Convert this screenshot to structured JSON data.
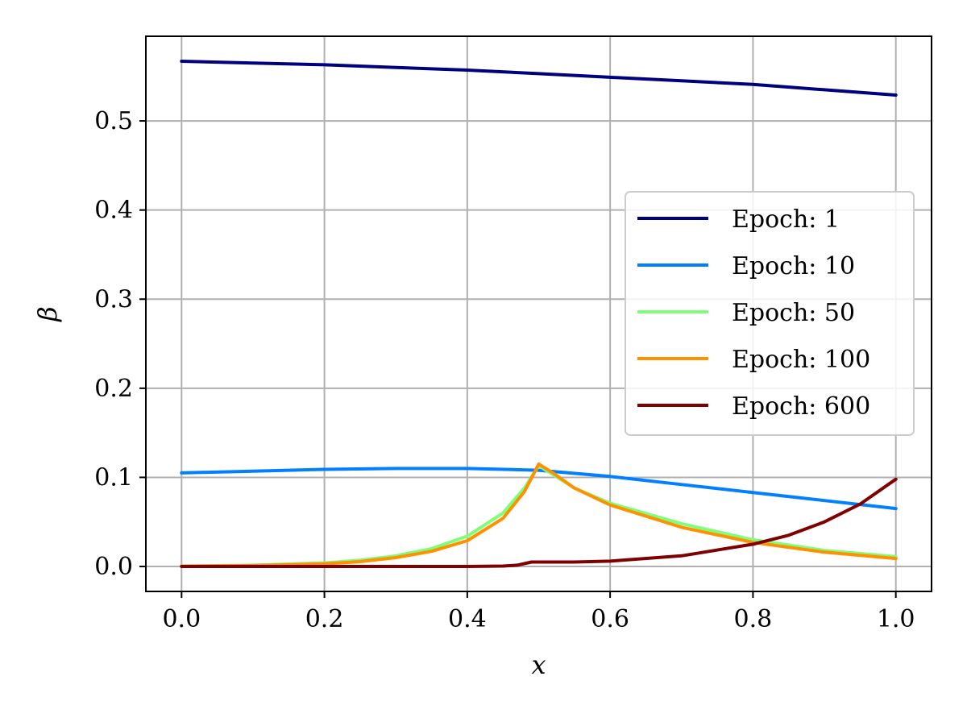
{
  "chart_data": {
    "type": "line",
    "title": "",
    "xlabel": "x",
    "ylabel": "β",
    "xlim": [
      -0.05,
      1.05
    ],
    "ylim": [
      -0.028,
      0.595
    ],
    "xticks": [
      0.0,
      0.2,
      0.4,
      0.6,
      0.8,
      1.0
    ],
    "xtick_labels": [
      "0.0",
      "0.2",
      "0.4",
      "0.6",
      "0.8",
      "1.0"
    ],
    "yticks": [
      0.0,
      0.1,
      0.2,
      0.3,
      0.4,
      0.5
    ],
    "ytick_labels": [
      "0.0",
      "0.1",
      "0.2",
      "0.3",
      "0.4",
      "0.5"
    ],
    "grid": true,
    "legend_position": "center-right",
    "series": [
      {
        "name": "Epoch: 1",
        "color": "#00007f",
        "x": [
          0.0,
          0.1,
          0.2,
          0.3,
          0.4,
          0.5,
          0.6,
          0.7,
          0.8,
          0.9,
          1.0
        ],
        "y": [
          0.567,
          0.565,
          0.563,
          0.56,
          0.557,
          0.553,
          0.549,
          0.545,
          0.541,
          0.535,
          0.529
        ]
      },
      {
        "name": "Epoch: 10",
        "color": "#0080ff",
        "x": [
          0.0,
          0.1,
          0.2,
          0.3,
          0.4,
          0.5,
          0.6,
          0.7,
          0.8,
          0.9,
          1.0
        ],
        "y": [
          0.105,
          0.107,
          0.109,
          0.11,
          0.11,
          0.108,
          0.101,
          0.092,
          0.083,
          0.074,
          0.065
        ]
      },
      {
        "name": "Epoch: 50",
        "color": "#7dff7a",
        "x": [
          0.0,
          0.1,
          0.2,
          0.25,
          0.3,
          0.35,
          0.4,
          0.45,
          0.48,
          0.5,
          0.52,
          0.55,
          0.6,
          0.7,
          0.8,
          0.9,
          1.0
        ],
        "y": [
          0.0005,
          0.0015,
          0.004,
          0.007,
          0.012,
          0.02,
          0.034,
          0.06,
          0.088,
          0.113,
          0.103,
          0.088,
          0.071,
          0.048,
          0.03,
          0.018,
          0.011
        ]
      },
      {
        "name": "Epoch: 100",
        "color": "#ff9100",
        "x": [
          0.0,
          0.1,
          0.2,
          0.25,
          0.3,
          0.35,
          0.4,
          0.45,
          0.48,
          0.5,
          0.52,
          0.55,
          0.6,
          0.7,
          0.8,
          0.9,
          1.0
        ],
        "y": [
          0.0004,
          0.001,
          0.003,
          0.0055,
          0.01,
          0.017,
          0.029,
          0.054,
          0.084,
          0.115,
          0.105,
          0.088,
          0.069,
          0.044,
          0.027,
          0.016,
          0.009
        ]
      },
      {
        "name": "Epoch: 600",
        "color": "#7f0000",
        "x": [
          0.0,
          0.1,
          0.2,
          0.3,
          0.4,
          0.45,
          0.47,
          0.49,
          0.5,
          0.52,
          0.55,
          0.6,
          0.7,
          0.8,
          0.85,
          0.9,
          0.95,
          1.0
        ],
        "y": [
          0.0,
          0.0,
          0.0,
          0.0,
          0.0,
          0.0005,
          0.0015,
          0.005,
          0.005,
          0.005,
          0.005,
          0.006,
          0.012,
          0.025,
          0.035,
          0.05,
          0.07,
          0.098
        ]
      }
    ]
  }
}
